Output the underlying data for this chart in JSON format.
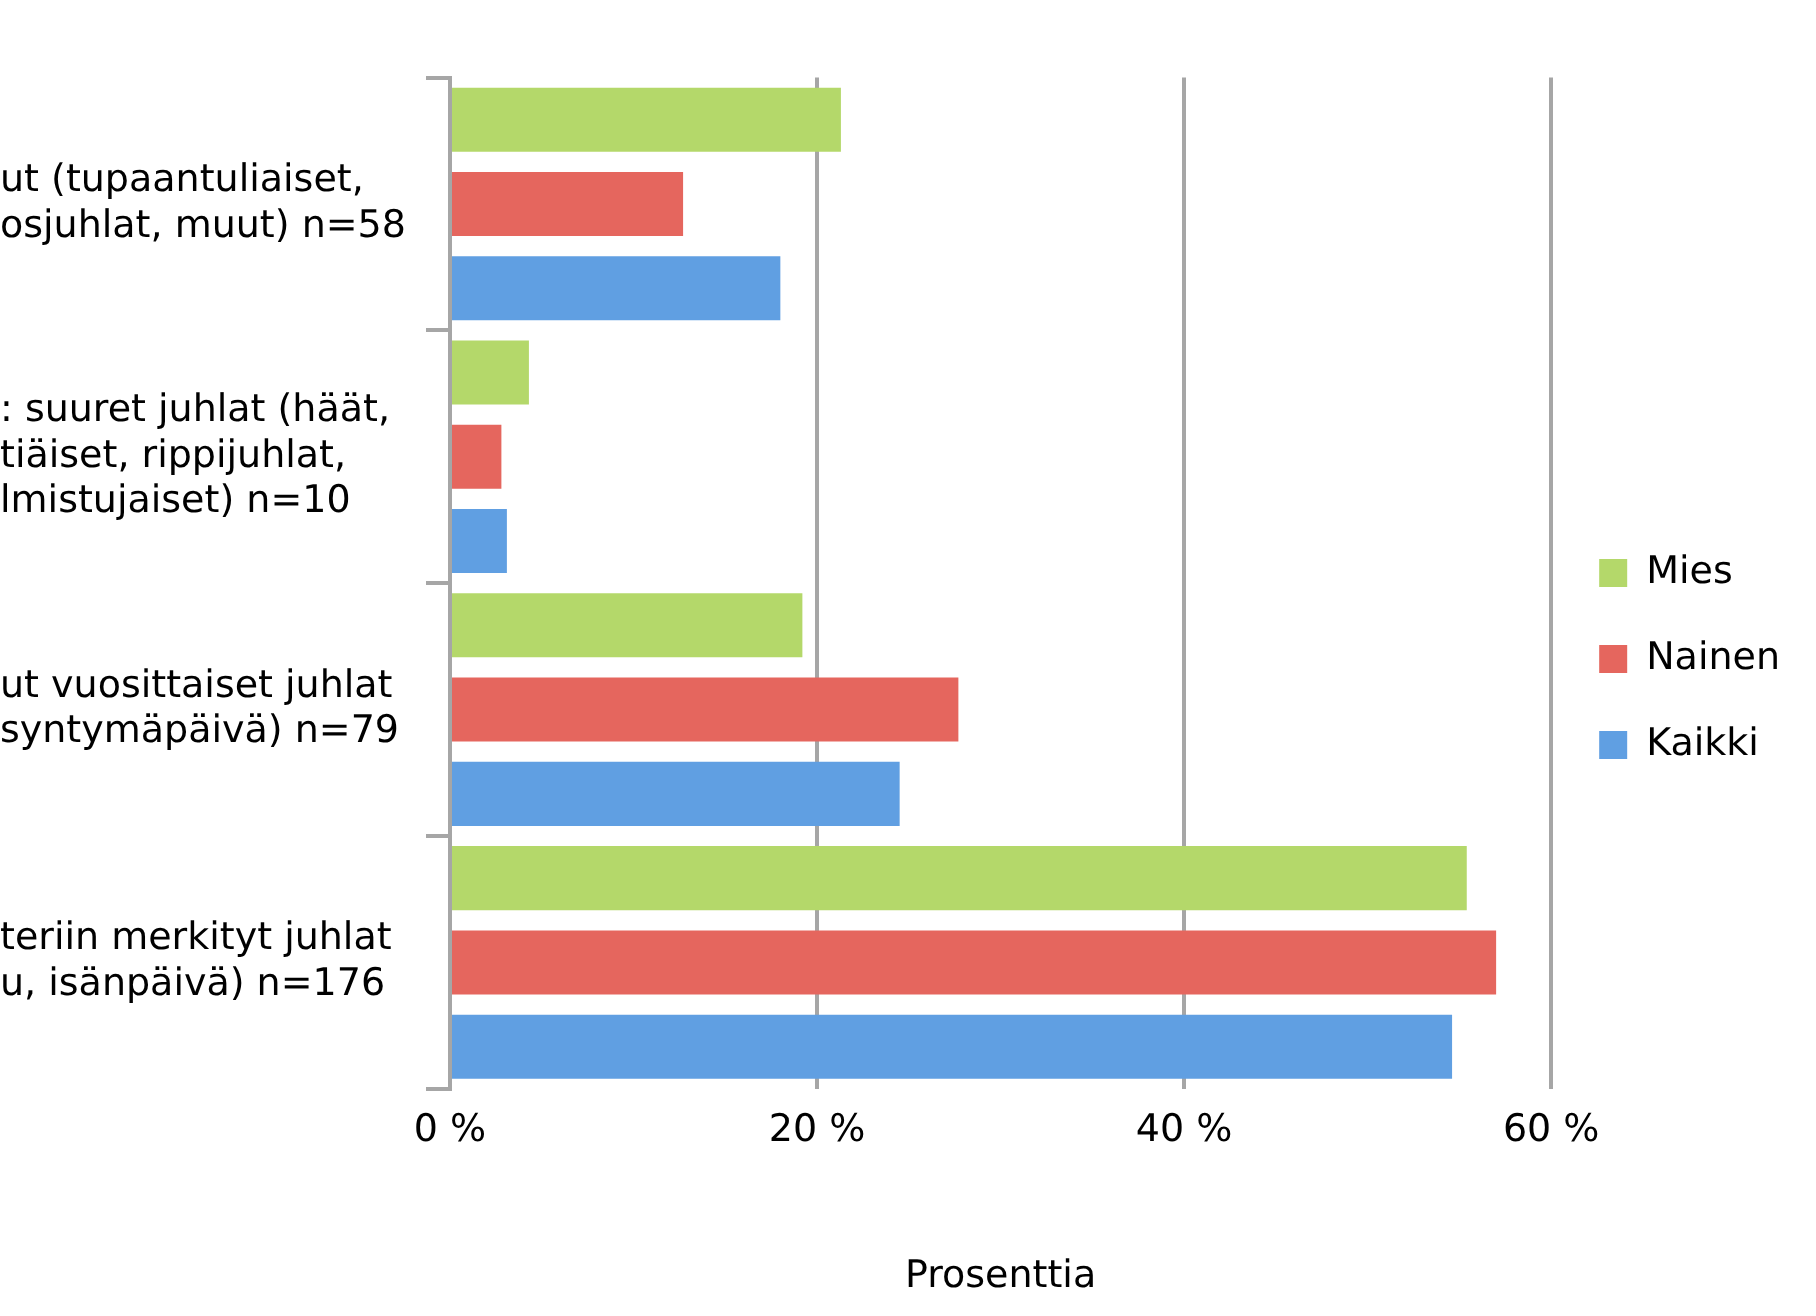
{
  "chart_data": {
    "type": "bar",
    "orientation": "horizontal",
    "xlabel": "Prosenttia",
    "categories": [
      "ut (tupaantuliaiset,\nosjuhlat, muut) n=58",
      ": suuret juhlat (häät,\ntiäiset, rippijuhlat,\nlmistujaiset) n=10",
      "ut vuosittaiset juhlat\nsyntymäpäivä) n=79",
      "teriin merkityt juhlat\nu, isänpäivä) n=176"
    ],
    "series": [
      {
        "name": "Mies",
        "color": "#b4d86a",
        "values": [
          21.3,
          4.3,
          19.2,
          55.4
        ]
      },
      {
        "name": "Nainen",
        "color": "#e5665e",
        "values": [
          12.7,
          2.8,
          27.7,
          57.0
        ]
      },
      {
        "name": "Kaikki",
        "color": "#609fe2",
        "values": [
          18.0,
          3.1,
          24.5,
          54.6
        ]
      }
    ],
    "xlim": [
      0,
      60
    ],
    "xticks": [
      {
        "value": 0,
        "label": "0 %"
      },
      {
        "value": 20,
        "label": "20 %"
      },
      {
        "value": 40,
        "label": "40 %"
      },
      {
        "value": 60,
        "label": "60 %"
      }
    ],
    "grid": "x",
    "legend": "right"
  }
}
